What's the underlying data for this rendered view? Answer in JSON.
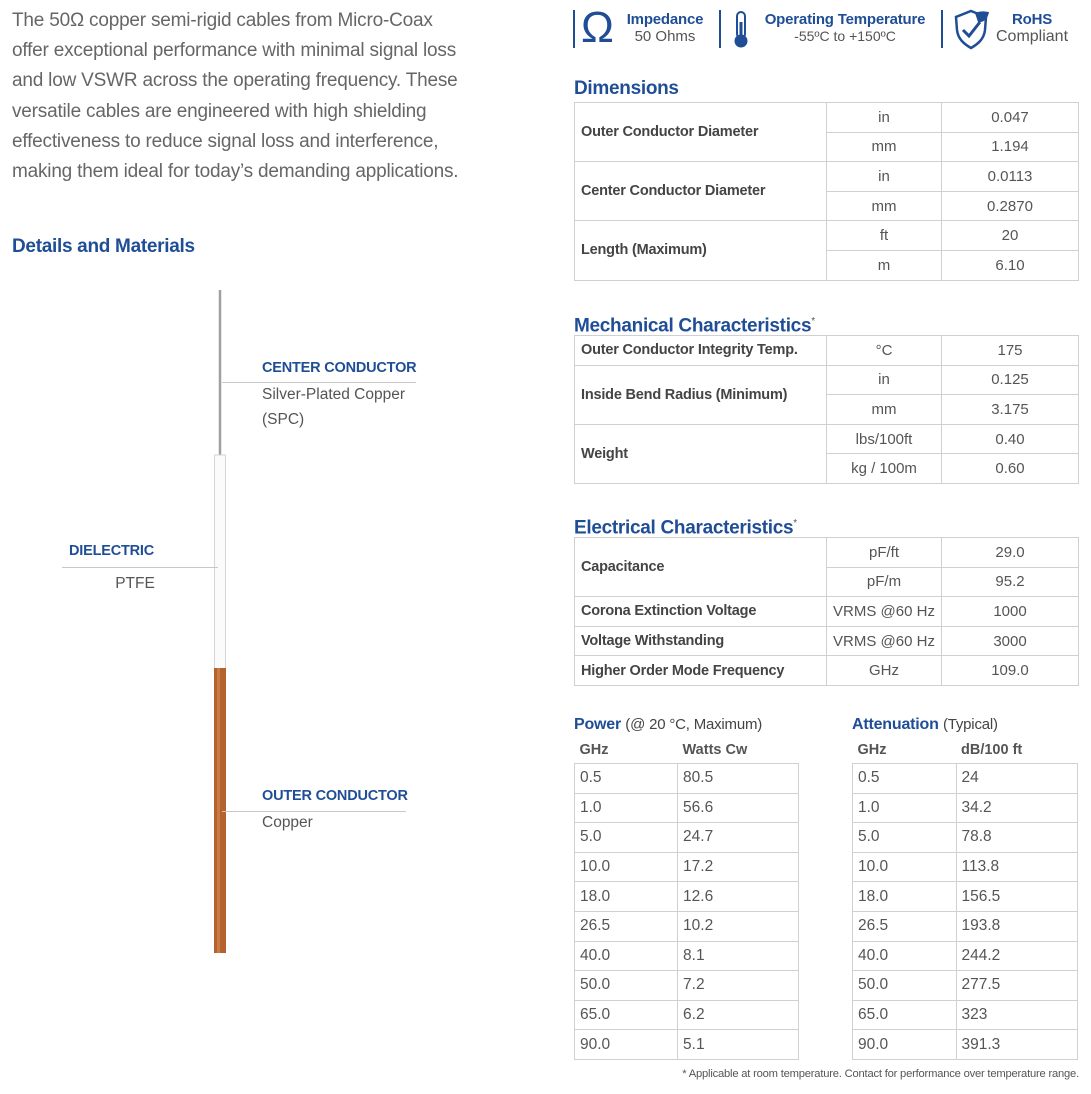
{
  "intro_lines": [
    "The 50Ω copper semi-rigid cables from Micro-Coax",
    "offer exceptional performance with minimal signal loss",
    "and low VSWR across the operating frequency. These",
    "versatile cables are engineered with high shielding",
    "effectiveness to reduce signal loss and interference,",
    "making them ideal for today’s demanding applications."
  ],
  "details_title": "Details and Materials",
  "cable_labels": [
    {
      "title": "CENTER CONDUCTOR",
      "desc": "Silver-Plated Copper (SPC)"
    },
    {
      "title": "DIELECTRIC",
      "desc": "PTFE"
    },
    {
      "title": "OUTER CONDUCTOR",
      "desc": "Copper"
    }
  ],
  "badges": [
    {
      "symbol": "Ω",
      "title": "Impedance",
      "sub": "50 Ohms"
    },
    {
      "title": "Operating Temperature",
      "sub": "-55ºC to +150ºC"
    },
    {
      "title": "RoHS",
      "sub": "Compliant"
    }
  ],
  "dimensions": {
    "title": "Dimensions",
    "rows": [
      {
        "label": "Outer Conductor Diameter",
        "units": [
          [
            "in",
            "0.047"
          ],
          [
            "mm",
            "1.194"
          ]
        ]
      },
      {
        "label": "Center Conductor Diameter",
        "units": [
          [
            "in",
            "0.0113"
          ],
          [
            "mm",
            "0.2870"
          ]
        ]
      },
      {
        "label": "Length (Maximum)",
        "units": [
          [
            "ft",
            "20"
          ],
          [
            "m",
            "6.10"
          ]
        ]
      }
    ]
  },
  "mechanical": {
    "title": "Mechanical Characteristics",
    "note": "*",
    "rows": [
      {
        "label": "Outer Conductor Integrity Temp.",
        "units": [
          [
            "°C",
            "175"
          ]
        ]
      },
      {
        "label": "Inside Bend Radius (Minimum)",
        "units": [
          [
            "in",
            "0.125"
          ],
          [
            "mm",
            "3.175"
          ]
        ]
      },
      {
        "label": "Weight",
        "units": [
          [
            "lbs/100ft",
            "0.40"
          ],
          [
            "kg / 100m",
            "0.60"
          ]
        ]
      }
    ]
  },
  "electrical": {
    "title": "Electrical Characteristics",
    "note": "*",
    "rows": [
      {
        "label": "Capacitance",
        "units": [
          [
            "pF/ft",
            "29.0"
          ],
          [
            "pF/m",
            "95.2"
          ]
        ]
      },
      {
        "label": "Corona Extinction Voltage",
        "units": [
          [
            "VRMS @60 Hz",
            "1000"
          ]
        ]
      },
      {
        "label": "Voltage Withstanding",
        "units": [
          [
            "VRMS @60 Hz",
            "3000"
          ]
        ]
      },
      {
        "label": "Higher Order Mode Frequency",
        "units": [
          [
            "GHz",
            "109.0"
          ]
        ]
      }
    ]
  },
  "power": {
    "title": "Power",
    "subtitle": "(@ 20 °C, Maximum)",
    "headers": [
      "GHz",
      "Watts Cw"
    ],
    "rows": [
      [
        "0.5",
        "80.5"
      ],
      [
        "1.0",
        "56.6"
      ],
      [
        "5.0",
        "24.7"
      ],
      [
        "10.0",
        "17.2"
      ],
      [
        "18.0",
        "12.6"
      ],
      [
        "26.5",
        "10.2"
      ],
      [
        "40.0",
        "8.1"
      ],
      [
        "50.0",
        "7.2"
      ],
      [
        "65.0",
        "6.2"
      ],
      [
        "90.0",
        "5.1"
      ]
    ]
  },
  "attenuation": {
    "title": "Attenuation",
    "subtitle": "(Typical)",
    "headers": [
      "GHz",
      "dB/100 ft"
    ],
    "rows": [
      [
        "0.5",
        "24"
      ],
      [
        "1.0",
        "34.2"
      ],
      [
        "5.0",
        "78.8"
      ],
      [
        "10.0",
        "113.8"
      ],
      [
        "18.0",
        "156.5"
      ],
      [
        "26.5",
        "193.8"
      ],
      [
        "40.0",
        "244.2"
      ],
      [
        "50.0",
        "277.5"
      ],
      [
        "65.0",
        "323"
      ],
      [
        "90.0",
        "391.3"
      ]
    ]
  },
  "footnote": "* Applicable at room temperature. Contact for performance over temperature range."
}
